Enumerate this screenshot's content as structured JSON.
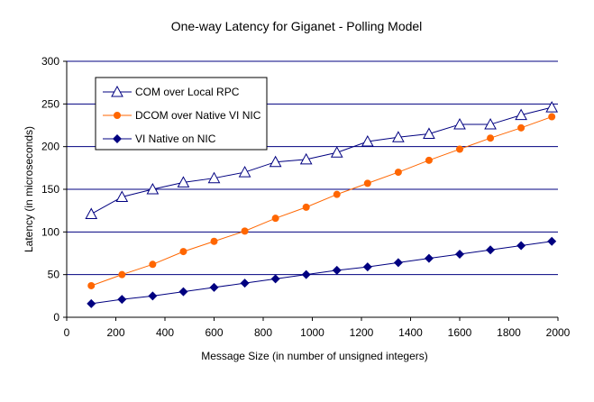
{
  "chart_data": {
    "type": "line",
    "title": "One-way Latency for Giganet - Polling Model",
    "xlabel": "Message Size (in number of unsigned integers)",
    "ylabel": "Latency (in microseconds)",
    "xlim": [
      0,
      2000
    ],
    "ylim": [
      0,
      300
    ],
    "xticks": [
      0,
      200,
      400,
      600,
      800,
      1000,
      1200,
      1400,
      1600,
      1800,
      2000
    ],
    "yticks": [
      0,
      50,
      100,
      150,
      200,
      250,
      300
    ],
    "grid": "horizontal",
    "legend_placement": "top-left",
    "x": [
      100,
      225,
      350,
      475,
      600,
      725,
      850,
      975,
      1100,
      1225,
      1350,
      1475,
      1600,
      1725,
      1850,
      1975
    ],
    "series": [
      {
        "name": "COM over Local RPC",
        "color": "#000080",
        "marker": "triangle-open",
        "values": [
          121,
          141,
          150,
          158,
          163,
          170,
          182,
          185,
          193,
          206,
          211,
          215,
          226,
          226,
          237,
          246
        ]
      },
      {
        "name": "DCOM over Native VI NIC",
        "color": "#FF6600",
        "marker": "circle",
        "values": [
          37,
          50,
          62,
          77,
          89,
          101,
          116,
          129,
          144,
          157,
          170,
          184,
          197,
          210,
          222,
          235
        ]
      },
      {
        "name": "VI Native on NIC",
        "color": "#000080",
        "marker": "diamond",
        "values": [
          16,
          21,
          25,
          30,
          35,
          40,
          45,
          50,
          55,
          59,
          64,
          69,
          74,
          79,
          84,
          89
        ]
      }
    ]
  }
}
